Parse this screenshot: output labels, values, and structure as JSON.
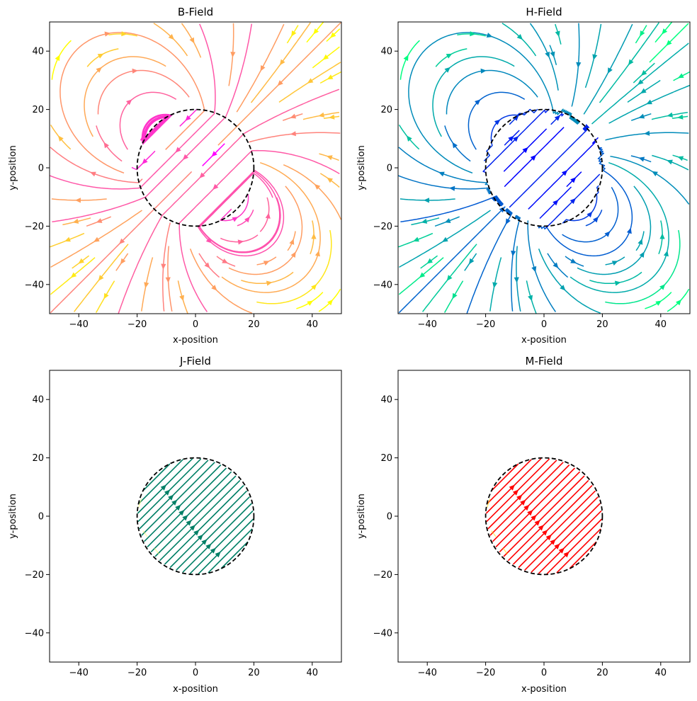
{
  "figure": {
    "background": "#ffffff"
  },
  "chart_data": [
    {
      "type": "streamplot",
      "title": "B-Field",
      "xlabel": "x-position",
      "ylabel": "y-position",
      "xlim": [
        -50,
        50
      ],
      "ylim": [
        -50,
        50
      ],
      "xticks": [
        -40,
        -20,
        0,
        20,
        40
      ],
      "yticks": [
        -40,
        -20,
        0,
        20,
        40
      ],
      "xtick_labels": [
        "−40",
        "−20",
        "0",
        "20",
        "40"
      ],
      "ytick_labels": [
        "−40",
        "−20",
        "0",
        "20",
        "40"
      ],
      "colormap": "spring",
      "colors": {
        "inside": "#ff00ff",
        "mid": "#ff7f80",
        "outside": "#ffff00"
      },
      "field": "dipole_total",
      "sphere": {
        "center": [
          0,
          0
        ],
        "radius": 20,
        "style": "dashed",
        "color": "#000000"
      },
      "magnetization_direction_deg": 225,
      "grid": false,
      "legend": "none"
    },
    {
      "type": "streamplot",
      "title": "H-Field",
      "xlabel": "x-position",
      "ylabel": "y-position",
      "xlim": [
        -50,
        50
      ],
      "ylim": [
        -50,
        50
      ],
      "xticks": [
        -40,
        -20,
        0,
        20,
        40
      ],
      "yticks": [
        -40,
        -20,
        0,
        20,
        40
      ],
      "xtick_labels": [
        "−40",
        "−20",
        "0",
        "20",
        "40"
      ],
      "ytick_labels": [
        "−40",
        "−20",
        "0",
        "20",
        "40"
      ],
      "colormap": "winter",
      "colors": {
        "inside": "#0000ff",
        "mid": "#0080bf",
        "outside": "#00ff80"
      },
      "field": "demagnetizing",
      "sphere": {
        "center": [
          0,
          0
        ],
        "radius": 20,
        "style": "dashed",
        "color": "#000000"
      },
      "magnetization_direction_deg": 225,
      "grid": false,
      "legend": "none"
    },
    {
      "type": "streamplot",
      "title": "J-Field",
      "xlabel": "x-position",
      "ylabel": "y-position",
      "xlim": [
        -50,
        50
      ],
      "ylim": [
        -50,
        50
      ],
      "xticks": [
        -40,
        -20,
        0,
        20,
        40
      ],
      "yticks": [
        -40,
        -20,
        0,
        20,
        40
      ],
      "xtick_labels": [
        "−40",
        "−20",
        "0",
        "20",
        "40"
      ],
      "ytick_labels": [
        "−40",
        "−20",
        "0",
        "20",
        "40"
      ],
      "colormap": "summer",
      "colors": {
        "inside": "#007f66",
        "edge": "#ffff66"
      },
      "field": "uniform_inside",
      "sphere": {
        "center": [
          0,
          0
        ],
        "radius": 20,
        "style": "dashed",
        "color": "#000000"
      },
      "magnetization_direction_deg": 45,
      "grid": false,
      "legend": "none"
    },
    {
      "type": "streamplot",
      "title": "M-Field",
      "xlabel": "x-position",
      "ylabel": "y-position",
      "xlim": [
        -50,
        50
      ],
      "ylim": [
        -50,
        50
      ],
      "xticks": [
        -40,
        -20,
        0,
        20,
        40
      ],
      "yticks": [
        -40,
        -20,
        0,
        20,
        40
      ],
      "xtick_labels": [
        "−40",
        "−20",
        "0",
        "20",
        "40"
      ],
      "ytick_labels": [
        "−40",
        "−20",
        "0",
        "20",
        "40"
      ],
      "colormap": "autumn",
      "colors": {
        "inside": "#ff0000",
        "edge": "#ffdd00"
      },
      "field": "uniform_inside",
      "sphere": {
        "center": [
          0,
          0
        ],
        "radius": 20,
        "style": "dashed",
        "color": "#000000"
      },
      "magnetization_direction_deg": 45,
      "grid": false,
      "legend": "none"
    }
  ]
}
